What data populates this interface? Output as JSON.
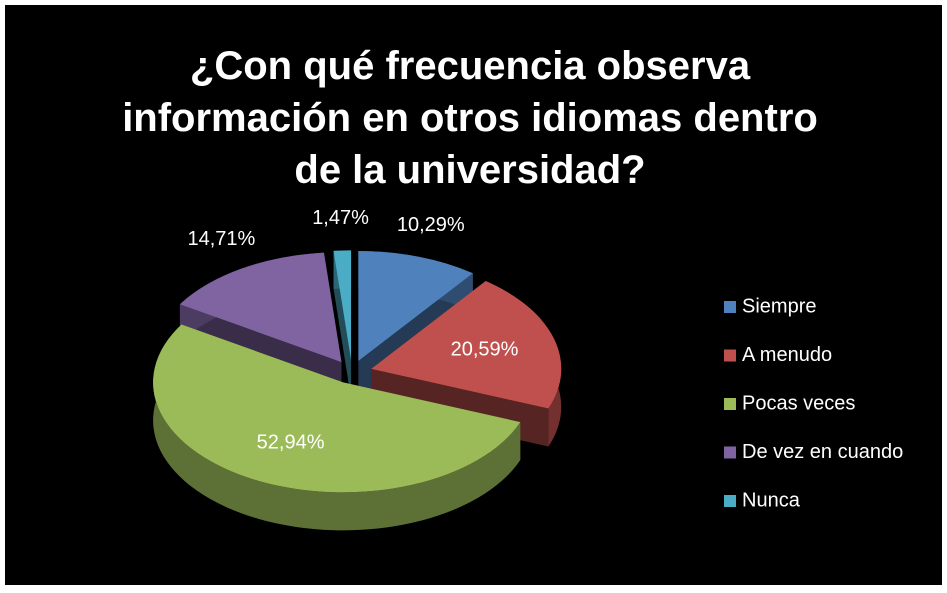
{
  "chart_data": {
    "type": "pie",
    "title": "¿Con qué frecuencia observa información en otros idiomas dentro de la universidad?",
    "categories": [
      "Siempre",
      "A menudo",
      "Pocas veces",
      "De vez en cuando",
      "Nunca"
    ],
    "values": [
      10.29,
      20.59,
      52.94,
      14.71,
      1.47
    ],
    "value_labels": [
      "10,29%",
      "20,59%",
      "52,94%",
      "14,71%",
      "1,47%"
    ],
    "colors": [
      "#4f81bd",
      "#c0504d",
      "#9bbb59",
      "#8064a2",
      "#4bacc6"
    ],
    "legend": "right"
  }
}
